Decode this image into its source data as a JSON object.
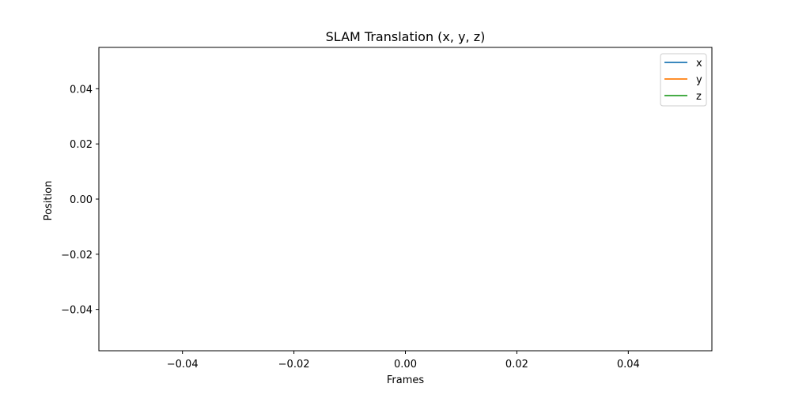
{
  "chart_data": {
    "type": "line",
    "title": "SLAM Translation (x, y, z)",
    "xlabel": "Frames",
    "ylabel": "Position",
    "xlim": [
      -0.055,
      0.055
    ],
    "ylim": [
      -0.055,
      0.055
    ],
    "x_ticks": [
      -0.04,
      -0.02,
      0.0,
      0.02,
      0.04
    ],
    "x_tick_labels": [
      "−0.04",
      "−0.02",
      "0.00",
      "0.02",
      "0.04"
    ],
    "y_ticks": [
      0.04,
      0.02,
      0.0,
      -0.02,
      -0.04
    ],
    "y_tick_labels": [
      "0.04",
      "0.02",
      "0.00",
      "−0.02",
      "−0.04"
    ],
    "grid": false,
    "legend_position": "top-right",
    "series": [
      {
        "name": "x",
        "color": "#1f77b4",
        "x": [],
        "y": []
      },
      {
        "name": "y",
        "color": "#ff7f0e",
        "x": [],
        "y": []
      },
      {
        "name": "z",
        "color": "#2ca02c",
        "x": [],
        "y": []
      }
    ]
  }
}
